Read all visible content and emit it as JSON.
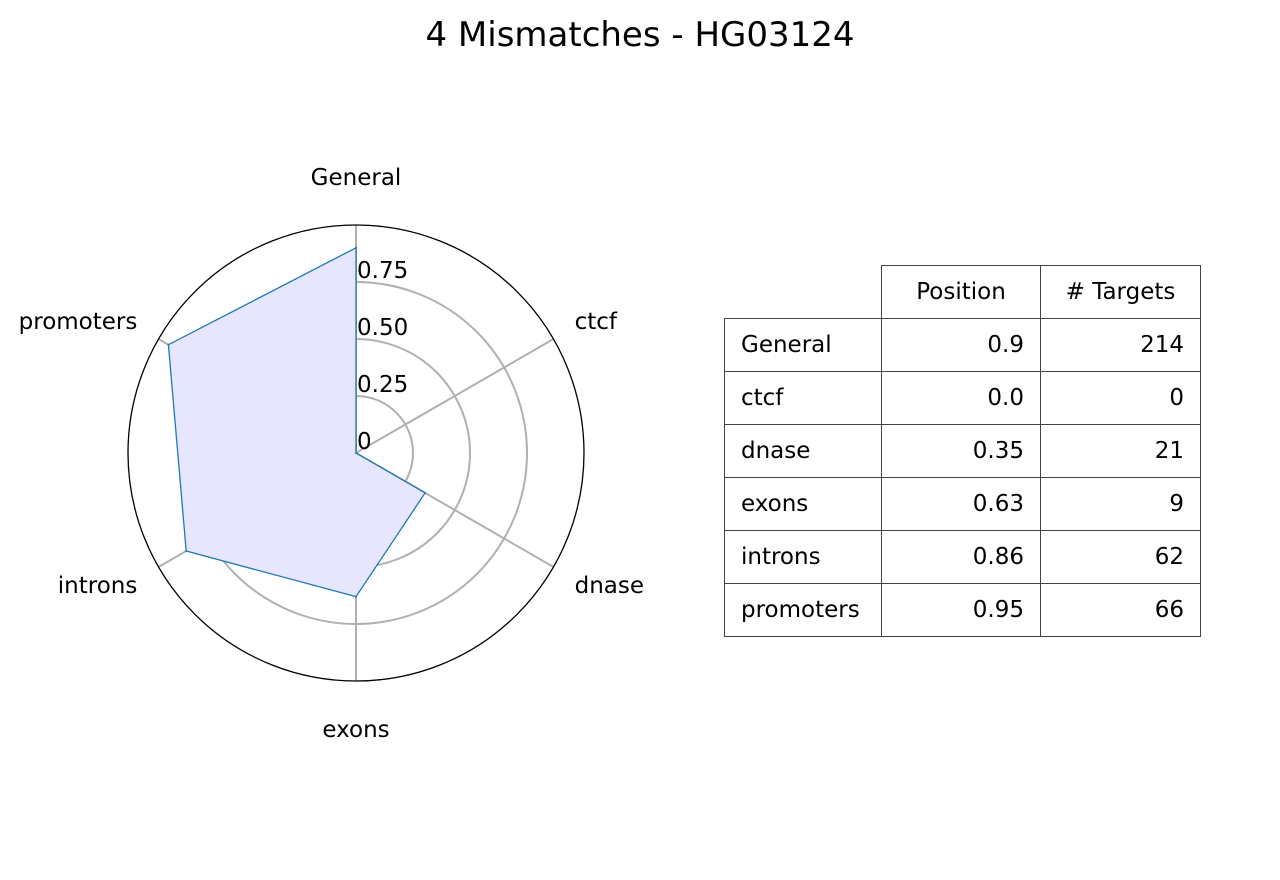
{
  "chart_data": {
    "type": "radar",
    "title": "4 Mismatches - HG03124",
    "categories": [
      "General",
      "ctcf",
      "dnase",
      "exons",
      "introns",
      "promoters"
    ],
    "values": [
      0.9,
      0.0,
      0.35,
      0.63,
      0.86,
      0.95
    ],
    "radial_ticks": [
      0,
      0.25,
      0.5,
      0.75
    ],
    "radial_tick_labels": [
      "0",
      "0.25",
      "0.50",
      "0.75"
    ],
    "rlim": [
      0,
      1
    ],
    "grid": true,
    "line_color": "#1f77b4",
    "fill_color": "#e6e6ff",
    "grid_color": "#b0b0b0"
  },
  "table": {
    "headers": [
      "",
      "Position",
      "# Targets"
    ],
    "rows": [
      {
        "category": "General",
        "position": "0.9",
        "targets": "214"
      },
      {
        "category": "ctcf",
        "position": "0.0",
        "targets": "0"
      },
      {
        "category": "dnase",
        "position": "0.35",
        "targets": "21"
      },
      {
        "category": "exons",
        "position": "0.63",
        "targets": "9"
      },
      {
        "category": "introns",
        "position": "0.86",
        "targets": "62"
      },
      {
        "category": "promoters",
        "position": "0.95",
        "targets": "66"
      }
    ]
  }
}
